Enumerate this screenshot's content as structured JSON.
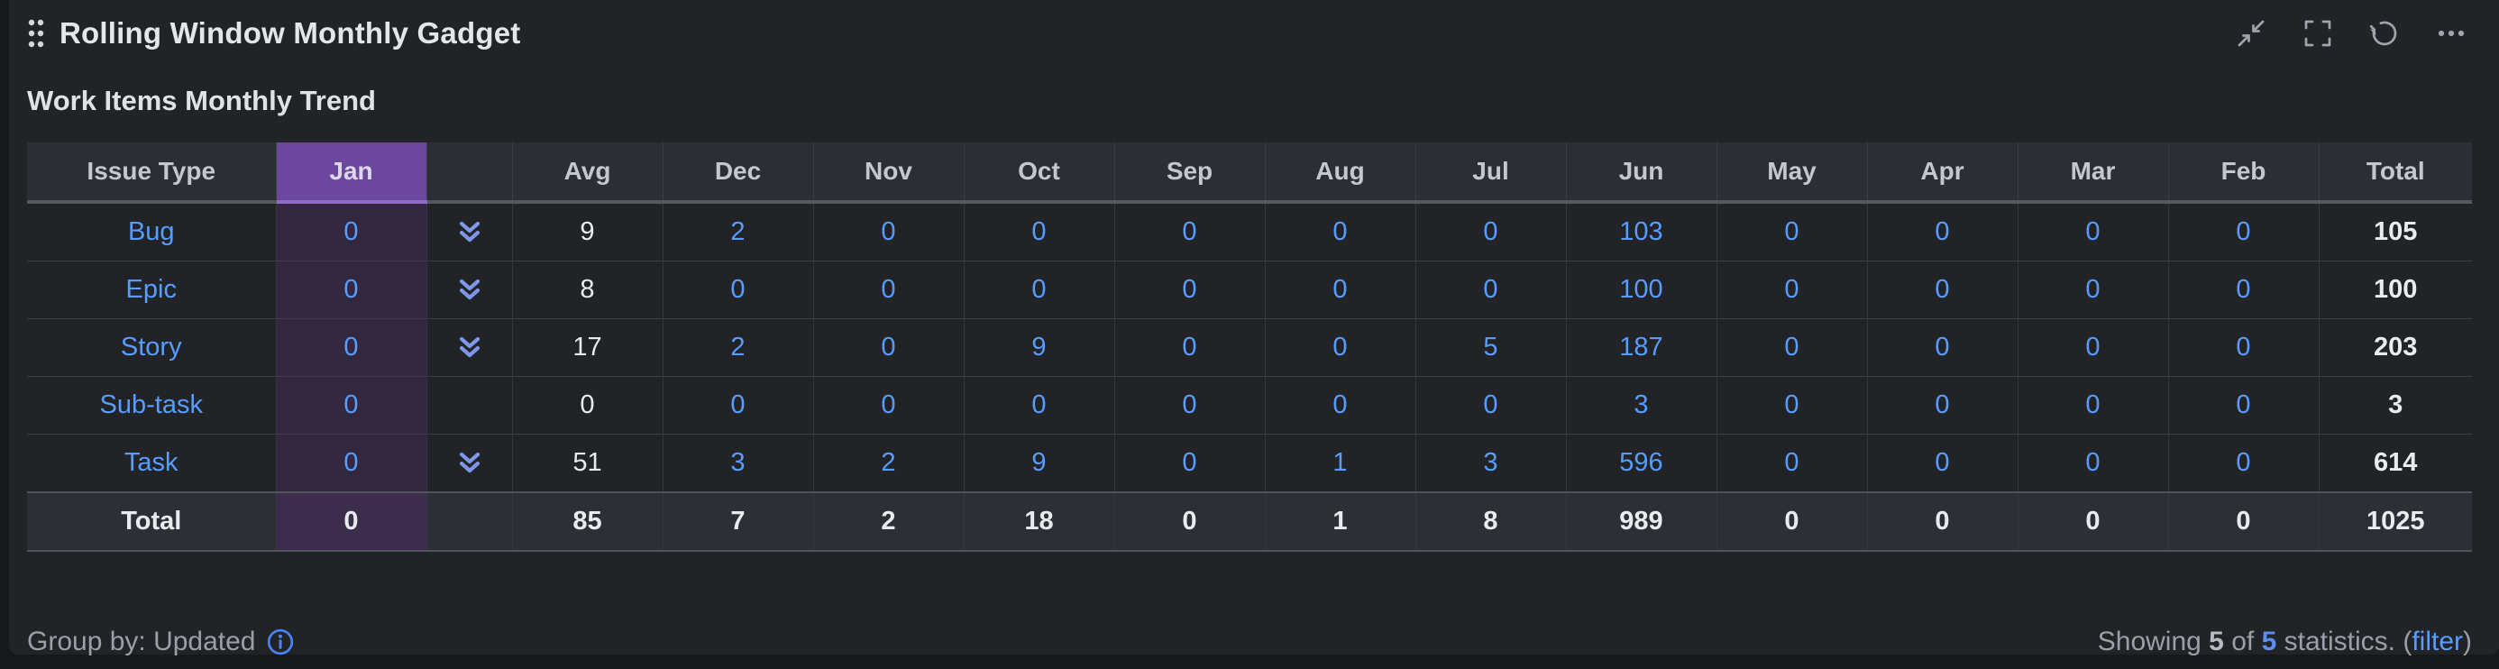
{
  "gadget": {
    "title": "Rolling Window Monthly Gadget",
    "section_title": "Work Items Monthly Trend",
    "toolbar_icons": [
      "collapse-icon",
      "fullscreen-icon",
      "refresh-icon",
      "more-icon"
    ]
  },
  "table": {
    "columns": [
      "Issue Type",
      "Jan",
      "",
      "Avg",
      "Dec",
      "Nov",
      "Oct",
      "Sep",
      "Aug",
      "Jul",
      "Jun",
      "May",
      "Apr",
      "Mar",
      "Feb",
      "Total"
    ],
    "rows": [
      {
        "issue_type": "Bug",
        "jan": "0",
        "expandable": true,
        "avg": "9",
        "months": [
          "2",
          "0",
          "0",
          "0",
          "0",
          "0",
          "103",
          "0",
          "0",
          "0",
          "0"
        ],
        "total": "105"
      },
      {
        "issue_type": "Epic",
        "jan": "0",
        "expandable": true,
        "avg": "8",
        "months": [
          "0",
          "0",
          "0",
          "0",
          "0",
          "0",
          "100",
          "0",
          "0",
          "0",
          "0"
        ],
        "total": "100"
      },
      {
        "issue_type": "Story",
        "jan": "0",
        "expandable": true,
        "avg": "17",
        "months": [
          "2",
          "0",
          "9",
          "0",
          "0",
          "5",
          "187",
          "0",
          "0",
          "0",
          "0"
        ],
        "total": "203"
      },
      {
        "issue_type": "Sub-task",
        "jan": "0",
        "expandable": false,
        "avg": "0",
        "months": [
          "0",
          "0",
          "0",
          "0",
          "0",
          "0",
          "3",
          "0",
          "0",
          "0",
          "0"
        ],
        "total": "3"
      },
      {
        "issue_type": "Task",
        "jan": "0",
        "expandable": true,
        "avg": "51",
        "months": [
          "3",
          "2",
          "9",
          "0",
          "1",
          "3",
          "596",
          "0",
          "0",
          "0",
          "0"
        ],
        "total": "614"
      }
    ],
    "total_row": {
      "label": "Total",
      "jan": "0",
      "avg": "85",
      "months": [
        "7",
        "2",
        "18",
        "0",
        "1",
        "8",
        "989",
        "0",
        "0",
        "0",
        "0"
      ],
      "total": "1025"
    }
  },
  "footer": {
    "group_by": "Group by: Updated",
    "showing": "Showing",
    "shown": "5",
    "of": "of",
    "total": "5",
    "statistics": "statistics.",
    "paren_open": "(",
    "filter": "filter",
    "paren_close": ")"
  },
  "colors": {
    "accent_purple": "#6b489e",
    "selected_cell_purple": "#342740",
    "link_blue": "#579dff",
    "chevron_blue": "#7f97eb",
    "panel_background": "#212327"
  }
}
